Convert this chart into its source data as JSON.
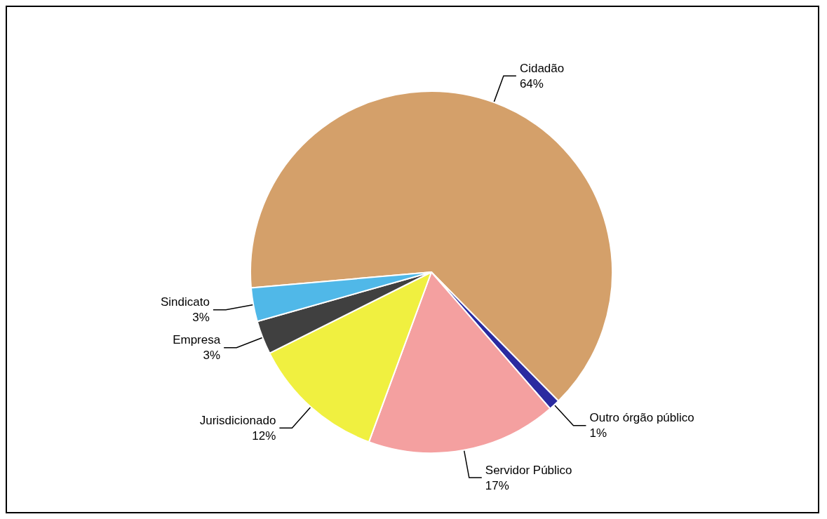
{
  "chart_data": {
    "type": "pie",
    "categories": [
      "Cidadão",
      "Outro órgão público",
      "Servidor Público",
      "Jurisdicionado",
      "Empresa",
      "Sindicato"
    ],
    "values": [
      64,
      1,
      17,
      12,
      3,
      3
    ],
    "colors": [
      "#d4a06a",
      "#2a2aa0",
      "#f4a0a0",
      "#f0f040",
      "#404040",
      "#50b8e8"
    ],
    "value_labels": [
      "64%",
      "1%",
      "17%",
      "12%",
      "3%",
      "3%"
    ],
    "legend": false
  }
}
